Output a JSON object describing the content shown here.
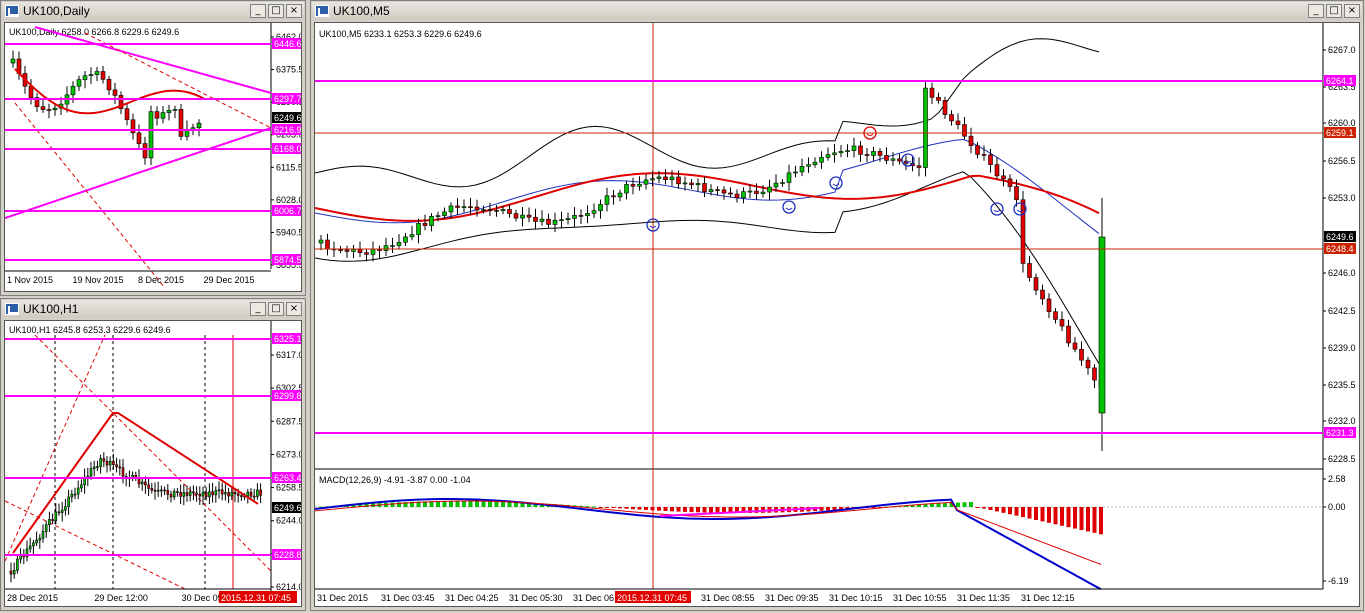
{
  "windows": {
    "daily": {
      "title": "UK100,Daily",
      "info": "UK100,Daily  6258.0 6266.8 6229.6 6249.6",
      "price_labels": [
        "6462.0",
        "6375.5",
        "6290.5",
        "6203.0",
        "6115.5",
        "6028.0",
        "5940.5",
        "5855.5"
      ],
      "level_labels": [
        {
          "text": "6446.6",
          "color": "#ff00ff"
        },
        {
          "text": "6297.7",
          "color": "#ff00ff"
        },
        {
          "text": "6249.6",
          "color": "#000000"
        },
        {
          "text": "6216.9",
          "color": "#ff00ff"
        },
        {
          "text": "6168.0",
          "color": "#ff00ff"
        },
        {
          "text": "6006.7",
          "color": "#ff00ff"
        },
        {
          "text": "5874.5",
          "color": "#ff00ff"
        }
      ],
      "time_labels": [
        "1 Nov 2015",
        "19 Nov 2015",
        "8 Dec 2015",
        "29 Dec 2015"
      ]
    },
    "h1": {
      "title": "UK100,H1",
      "info": "UK100,H1  6245.8 6253.3 6229.6 6249.6",
      "price_labels": [
        "6317.0",
        "6302.5",
        "6287.5",
        "6273.0",
        "6258.5",
        "6244.0",
        "6229.5",
        "6214.0"
      ],
      "level_labels": [
        {
          "text": "6325.1",
          "color": "#ff00ff"
        },
        {
          "text": "6299.8",
          "color": "#ff00ff"
        },
        {
          "text": "6263.4",
          "color": "#ff00ff"
        },
        {
          "text": "6249.6",
          "color": "#000000"
        },
        {
          "text": "6228.8",
          "color": "#ff00ff"
        }
      ],
      "time_labels": [
        "28 Dec 2015",
        "29 Dec 12:00",
        "30 Dec 05:00"
      ],
      "time_highlight": "2015.12.31 07:45"
    },
    "m5": {
      "title": "UK100,M5",
      "info": "UK100,M5  6233.1 6253.3 6229.6 6249.6",
      "price_labels": [
        "6267.0",
        "6263.5",
        "6260.0",
        "6256.5",
        "6253.0",
        "6246.0",
        "6242.5",
        "6239.0",
        "6235.5",
        "6232.0",
        "6228.5"
      ],
      "level_labels": [
        {
          "text": "6264.1",
          "color": "#ff00ff"
        },
        {
          "text": "6259.1",
          "color": "#cc2200"
        },
        {
          "text": "6249.6",
          "color": "#000000"
        },
        {
          "text": "6248.4",
          "color": "#cc2200"
        },
        {
          "text": "6231.3",
          "color": "#ff00ff"
        }
      ],
      "macd_info": "MACD(12,26,9) -4.91 -3.87 0.00 -1.04",
      "macd_labels": [
        "2.58",
        "0.00",
        "-6.19"
      ],
      "time_labels": [
        "31 Dec 2015",
        "31 Dec 03:45",
        "31 Dec 04:25",
        "31 Dec 05:30",
        "31 Dec 06",
        "31 Dec 08:15",
        "31 Dec 08:55",
        "31 Dec 09:35",
        "31 Dec 10:15",
        "31 Dec 10:55",
        "31 Dec 11:35",
        "31 Dec 12:15"
      ],
      "time_highlight": "2015.12.31 07:45"
    }
  },
  "buttons": {
    "minimize": "_",
    "restore": "□",
    "close": "×"
  },
  "colors": {
    "bull": "#00c000",
    "bear": "#e00000",
    "level": "#ff00ff",
    "ma": "#e00000",
    "bands": "#000000",
    "macd": "#0000cc"
  }
}
